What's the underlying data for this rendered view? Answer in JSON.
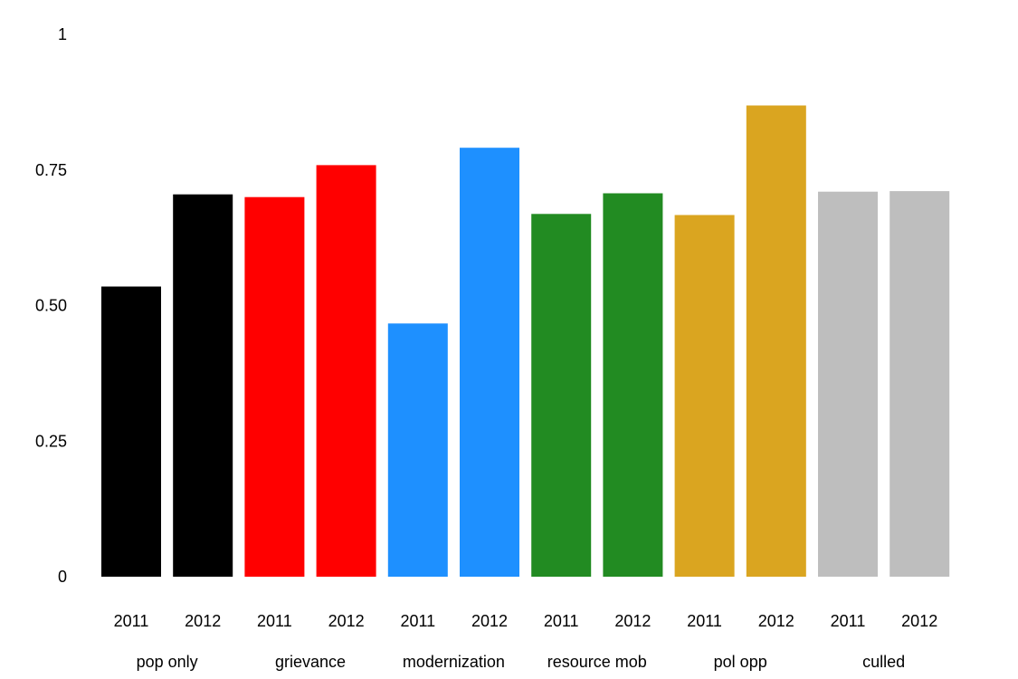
{
  "chart_data": {
    "type": "bar",
    "title": "",
    "xlabel": "",
    "ylabel": "",
    "ylim": [
      0,
      1
    ],
    "yticks": [
      {
        "value": 0,
        "label": "0"
      },
      {
        "value": 0.25,
        "label": "0.25"
      },
      {
        "value": 0.5,
        "label": "0.50"
      },
      {
        "value": 0.75,
        "label": "0.75"
      },
      {
        "value": 1,
        "label": "1"
      }
    ],
    "grid": false,
    "legend": "none",
    "groups": [
      {
        "label": "pop only",
        "color": "#000000",
        "bars": [
          {
            "label": "2011",
            "value": 0.535
          },
          {
            "label": "2012",
            "value": 0.705
          }
        ]
      },
      {
        "label": "grievance",
        "color": "#ff0000",
        "bars": [
          {
            "label": "2011",
            "value": 0.7
          },
          {
            "label": "2012",
            "value": 0.759
          }
        ]
      },
      {
        "label": "modernization",
        "color": "#1e90ff",
        "bars": [
          {
            "label": "2011",
            "value": 0.467
          },
          {
            "label": "2012",
            "value": 0.791
          }
        ]
      },
      {
        "label": "resource mob",
        "color": "#228b22",
        "bars": [
          {
            "label": "2011",
            "value": 0.669
          },
          {
            "label": "2012",
            "value": 0.707
          }
        ]
      },
      {
        "label": "pol opp",
        "color": "#daa520",
        "bars": [
          {
            "label": "2011",
            "value": 0.667
          },
          {
            "label": "2012",
            "value": 0.869
          }
        ]
      },
      {
        "label": "culled",
        "color": "#bebebe",
        "bars": [
          {
            "label": "2011",
            "value": 0.71
          },
          {
            "label": "2012",
            "value": 0.711
          }
        ]
      }
    ]
  }
}
